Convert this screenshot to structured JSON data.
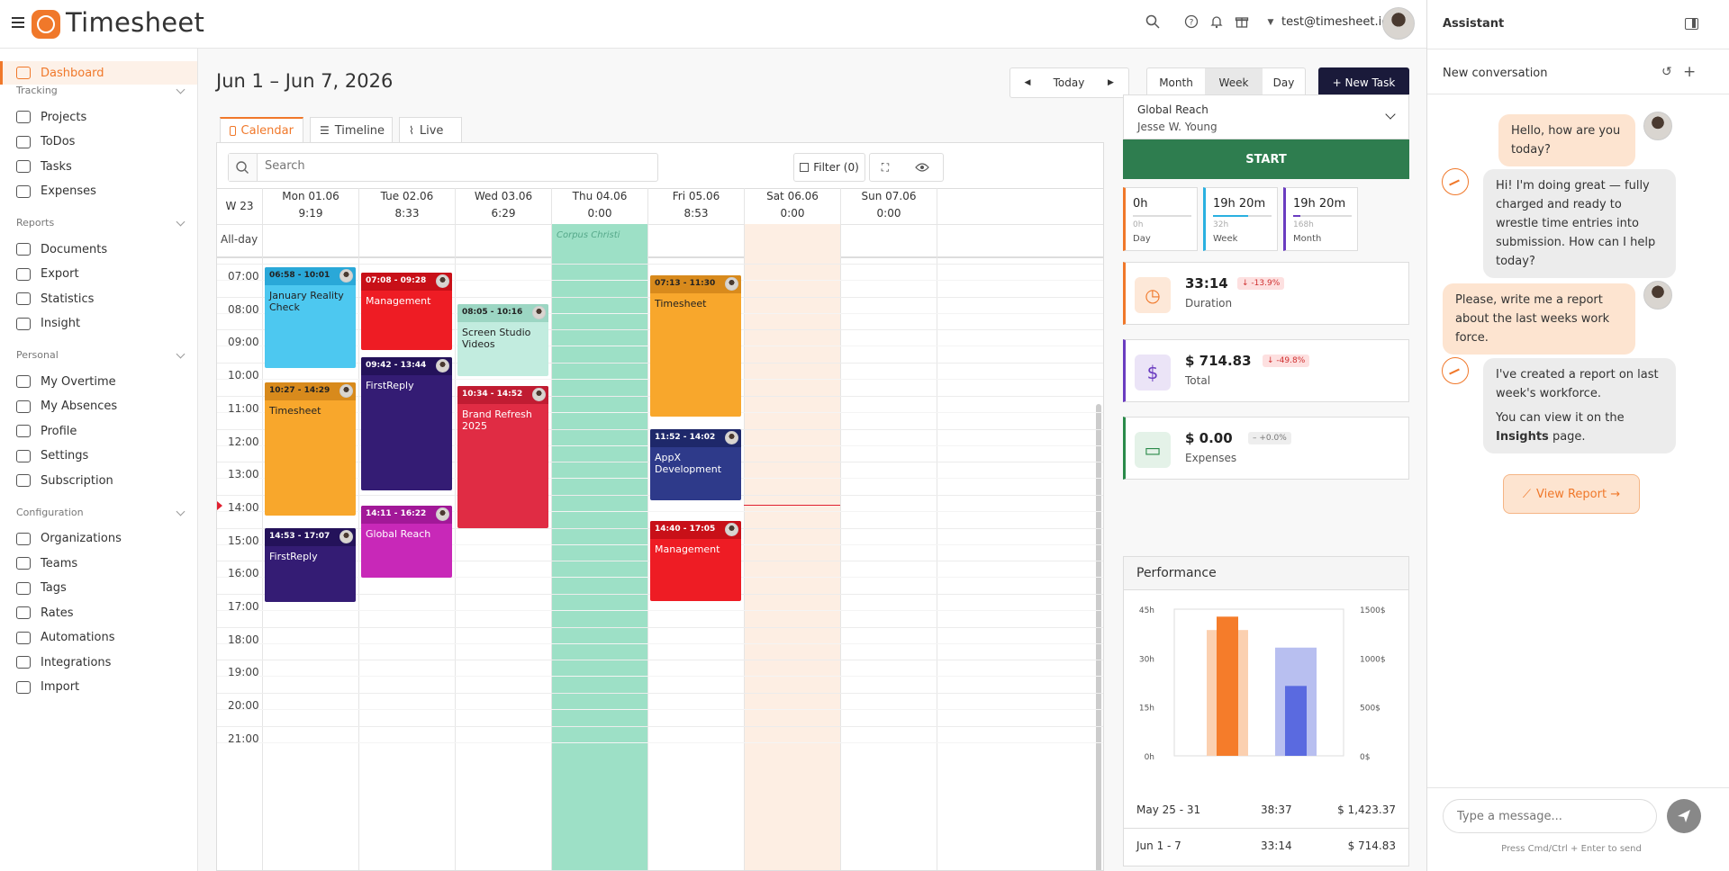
{
  "app": {
    "name": "Timesheet",
    "user_email": "test@timesheet.io"
  },
  "sidebar": {
    "dashboard": "Dashboard",
    "sections": [
      {
        "title": "Tracking",
        "items": [
          "Projects",
          "ToDos",
          "Tasks",
          "Expenses"
        ]
      },
      {
        "title": "Reports",
        "items": [
          "Documents",
          "Export",
          "Statistics",
          "Insight"
        ]
      },
      {
        "title": "Personal",
        "items": [
          "My Overtime",
          "My Absences",
          "Profile",
          "Settings",
          "Subscription"
        ]
      },
      {
        "title": "Configuration",
        "items": [
          "Organizations",
          "Teams",
          "Tags",
          "Rates",
          "Automations",
          "Integrations",
          "Import"
        ]
      }
    ]
  },
  "header": {
    "date_range": "Jun 1 – Jun 7, 2026",
    "today": "Today",
    "month": "Month",
    "week": "Week",
    "day": "Day",
    "new_task": "+ New Task"
  },
  "tabs": {
    "calendar": "Calendar",
    "timeline": "Timeline",
    "live": "Live"
  },
  "toolbar": {
    "search_placeholder": "Search",
    "filter": "Filter (0)"
  },
  "calendar": {
    "week_label": "W 23",
    "allday_label": "All-day",
    "days": [
      {
        "name": "Mon 01.06",
        "total": "9:19"
      },
      {
        "name": "Tue 02.06",
        "total": "8:33"
      },
      {
        "name": "Wed 03.06",
        "total": "6:29"
      },
      {
        "name": "Thu 04.06",
        "total": "0:00"
      },
      {
        "name": "Fri 05.06",
        "total": "8:53"
      },
      {
        "name": "Sat 06.06",
        "total": "0:00"
      },
      {
        "name": "Sun 07.06",
        "total": "0:00"
      }
    ],
    "holiday": "Corpus Christi",
    "hours": [
      "07:00",
      "08:00",
      "09:00",
      "10:00",
      "11:00",
      "12:00",
      "13:00",
      "14:00",
      "15:00",
      "16:00",
      "17:00",
      "18:00",
      "19:00",
      "20:00",
      "21:00"
    ],
    "events": [
      {
        "day": 0,
        "time": "06:58 - 10:01",
        "title": "January Reality Check",
        "color": "#4dc8f0",
        "head": "#2aa8d8",
        "dark": true
      },
      {
        "day": 0,
        "time": "10:27 - 14:29",
        "title": "Timesheet",
        "color": "#f8a72c",
        "head": "#d88a1c",
        "dark": true
      },
      {
        "day": 0,
        "time": "14:53 - 17:07",
        "title": "FirstReply",
        "color": "#341c74",
        "head": "#24125a",
        "dark": false
      },
      {
        "day": 1,
        "time": "07:08 - 09:28",
        "title": "Management",
        "color": "#ee1c24",
        "head": "#c81018",
        "dark": false
      },
      {
        "day": 1,
        "time": "09:42 - 13:44",
        "title": "FirstReply",
        "color": "#341c74",
        "head": "#24125a",
        "dark": false
      },
      {
        "day": 1,
        "time": "14:11 - 16:22",
        "title": "Global Reach",
        "color": "#c828b8",
        "head": "#a21898",
        "dark": false
      },
      {
        "day": 2,
        "time": "08:05 - 10:16",
        "title": "Screen Studio Videos",
        "color": "#c2ecdf",
        "head": "#9cd6c3",
        "dark": true
      },
      {
        "day": 2,
        "time": "10:34 - 14:52",
        "title": "Brand Refresh 2025",
        "color": "#e02c44",
        "head": "#c01c32",
        "dark": false
      },
      {
        "day": 4,
        "time": "07:13 - 11:30",
        "title": "Timesheet",
        "color": "#f8a72c",
        "head": "#d88a1c",
        "dark": true
      },
      {
        "day": 4,
        "time": "11:52 - 14:02",
        "title": "AppX Development",
        "color": "#2e3a8a",
        "head": "#1e286a",
        "dark": false
      },
      {
        "day": 4,
        "time": "14:40 - 17:05",
        "title": "Management",
        "color": "#ee1c24",
        "head": "#c81018",
        "dark": false
      }
    ]
  },
  "tracker": {
    "project": "Global Reach",
    "user": "Jesse W. Young",
    "start": "START"
  },
  "summary": [
    {
      "value": "0h",
      "sub": "0h",
      "label": "Day",
      "color": "#f0782a",
      "progress": 0
    },
    {
      "value": "19h 20m",
      "sub": "32h",
      "label": "Week",
      "color": "#2ab0e0",
      "progress": 0.6
    },
    {
      "value": "19h 20m",
      "sub": "168h",
      "label": "Month",
      "color": "#6a3cc0",
      "progress": 0.12
    }
  ],
  "stats": [
    {
      "value": "33:14",
      "badge": "↓ -13.9%",
      "label": "Duration",
      "color": "#f0782a",
      "icon": "clock-icon"
    },
    {
      "value": "$ 714.83",
      "badge": "↓ -49.8%",
      "label": "Total",
      "color": "#6a3cc0",
      "icon": "dollar-icon"
    },
    {
      "value": "$ 0.00",
      "badge": "– +0.0%",
      "label": "Expenses",
      "color": "#2a8a4a",
      "icon": "wallet-icon"
    }
  ],
  "performance": {
    "title": "Performance",
    "left_ticks": [
      "45h",
      "30h",
      "15h",
      "0h"
    ],
    "right_ticks": [
      "1500$",
      "1000$",
      "500$",
      "0$"
    ],
    "rows": [
      {
        "period": "May 25 - 31",
        "hours": "38:37",
        "amount": "$ 1,423.37"
      },
      {
        "period": "Jun 1 - 7",
        "hours": "33:14",
        "amount": "$ 714.83"
      }
    ],
    "bars": [
      {
        "hours": 38.6,
        "amount": 1423.37,
        "bg": "#fbd0b0",
        "fg": "#f57c2a"
      },
      {
        "hours": 33.2,
        "amount": 714.83,
        "bg": "#b8bff0",
        "fg": "#5a6ae0"
      }
    ]
  },
  "assistant": {
    "title": "Assistant",
    "new_conversation": "New conversation",
    "messages": [
      {
        "role": "user",
        "text": "Hello, how are you today?"
      },
      {
        "role": "bot",
        "text": "Hi! I'm doing great — fully charged and ready to wrestle time entries into submission. How can I help today?"
      },
      {
        "role": "user",
        "text": "Please, write me a report about the last weeks work force."
      },
      {
        "role": "bot",
        "text1": "I've created a report on last week's workforce.",
        "text2a": "You can view it on the ",
        "text2b": "Insights",
        "text2c": " page."
      }
    ],
    "view_report": "View Report →",
    "input_placeholder": "Type a message...",
    "hint": "Press Cmd/Ctrl + Enter to send"
  }
}
